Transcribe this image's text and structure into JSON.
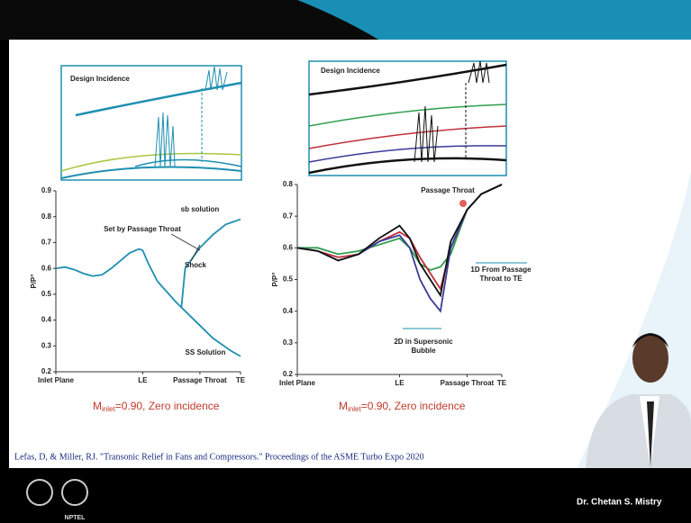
{
  "chart_data": [
    {
      "type": "line",
      "diagram_title": "Design Incidence",
      "y_label": "P/P°",
      "caption": {
        "main": "M",
        "sub": "inlet",
        "rest": "=0.90, Zero incidence"
      },
      "xlim": [
        0,
        1
      ],
      "ylim": [
        0.2,
        0.9
      ],
      "xticks": [
        {
          "value": 0,
          "label": "Inlet Plane"
        },
        {
          "value": 0.47,
          "label": "LE"
        },
        {
          "value": 0.78,
          "label": "Passage Throat"
        },
        {
          "value": 1,
          "label": "TE"
        }
      ],
      "yticks": [
        0.2,
        0.3,
        0.4,
        0.5,
        0.6,
        0.7,
        0.8,
        0.9
      ],
      "series": [
        {
          "color": "#1e8fb0",
          "x": [
            0,
            0.05,
            0.1,
            0.15,
            0.2,
            0.25,
            0.3,
            0.35,
            0.4,
            0.45,
            0.47,
            0.5,
            0.55
          ],
          "values": [
            0.6,
            0.605,
            0.595,
            0.58,
            0.57,
            0.575,
            0.6,
            0.63,
            0.66,
            0.675,
            0.67,
            0.62,
            0.55
          ]
        },
        {
          "name": "SS Solution",
          "color": "#1e8fb0",
          "x": [
            0.55,
            0.65,
            0.75,
            0.85,
            0.95,
            1.0
          ],
          "values": [
            0.55,
            0.47,
            0.4,
            0.33,
            0.28,
            0.26
          ]
        },
        {
          "name": "sb solution",
          "color": "#1e8fb0",
          "x": [
            0.68,
            0.7,
            0.75,
            0.78,
            0.85,
            0.92,
            1.0
          ],
          "values": [
            0.45,
            0.6,
            0.65,
            0.68,
            0.73,
            0.77,
            0.79
          ]
        }
      ],
      "annotations": [
        "Set by Passage Throat",
        "Shock"
      ]
    },
    {
      "type": "line",
      "diagram_title": "Design Incidence",
      "y_label": "P/P°",
      "caption": {
        "main": "M",
        "sub": "inlet",
        "rest": "=0.90, Zero incidence"
      },
      "xlim": [
        0,
        1
      ],
      "ylim": [
        0.2,
        0.8
      ],
      "xticks": [
        {
          "value": 0,
          "label": "Inlet Plane"
        },
        {
          "value": 0.5,
          "label": "LE"
        },
        {
          "value": 0.83,
          "label": "Passage Throat"
        },
        {
          "value": 1,
          "label": "TE"
        }
      ],
      "yticks": [
        0.2,
        0.3,
        0.4,
        0.5,
        0.6,
        0.7,
        0.8
      ],
      "series": [
        {
          "color": "#2e9e4f",
          "x": [
            0,
            0.1,
            0.2,
            0.3,
            0.4,
            0.5,
            0.55,
            0.6,
            0.65,
            0.7,
            0.75,
            0.83,
            0.9,
            1
          ],
          "values": [
            0.6,
            0.6,
            0.58,
            0.59,
            0.61,
            0.63,
            0.6,
            0.55,
            0.53,
            0.54,
            0.58,
            0.72,
            0.77,
            0.8
          ]
        },
        {
          "color": "#c0303a",
          "x": [
            0,
            0.1,
            0.2,
            0.3,
            0.4,
            0.5,
            0.55,
            0.6,
            0.65,
            0.7,
            0.75,
            0.83,
            0.9,
            1
          ],
          "values": [
            0.6,
            0.59,
            0.57,
            0.58,
            0.62,
            0.65,
            0.63,
            0.57,
            0.52,
            0.47,
            0.6,
            0.72,
            0.77,
            0.8
          ]
        },
        {
          "color": "#3a3a9a",
          "x": [
            0,
            0.1,
            0.2,
            0.3,
            0.4,
            0.5,
            0.55,
            0.6,
            0.65,
            0.7,
            0.75,
            0.83,
            0.9,
            1
          ],
          "values": [
            0.6,
            0.59,
            0.56,
            0.58,
            0.62,
            0.64,
            0.6,
            0.5,
            0.44,
            0.4,
            0.6,
            0.72,
            0.77,
            0.8
          ]
        },
        {
          "color": "#111111",
          "x": [
            0,
            0.1,
            0.2,
            0.3,
            0.4,
            0.5,
            0.55,
            0.6,
            0.65,
            0.7,
            0.75,
            0.83,
            0.9,
            1
          ],
          "values": [
            0.6,
            0.59,
            0.56,
            0.58,
            0.63,
            0.67,
            0.63,
            0.55,
            0.5,
            0.45,
            0.62,
            0.72,
            0.77,
            0.8
          ]
        }
      ],
      "annotations": [
        "Passage Throat",
        "1D From Passage",
        "Throat to TE",
        "2D in Supersonic",
        "Bubble"
      ]
    }
  ],
  "footer": {
    "citation": "Lefas, D, & Miller, RJ. \"Transonic Relief in Fans and Compressors.\" Proceedings of the ASME Turbo Expo 2020",
    "presenter": "Dr. Chetan S. Mistry",
    "logo_text": "NPTEL"
  }
}
